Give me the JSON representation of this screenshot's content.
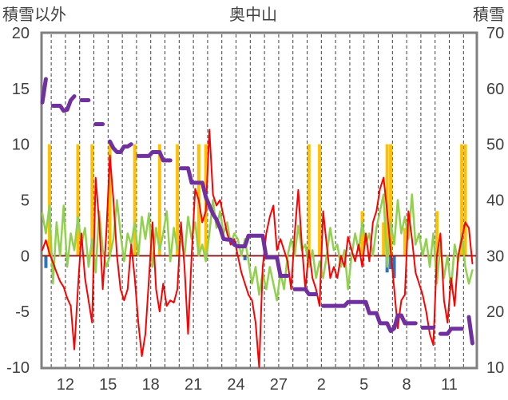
{
  "chart_data": {
    "type": "line",
    "title": "奥中山",
    "ylabel_left": "積雪以外",
    "ylabel_right": "積雪",
    "x_tick_labels": [
      "12",
      "15",
      "18",
      "21",
      "24",
      "27",
      "2",
      "5",
      "8",
      "11"
    ],
    "y_left": {
      "ticks": [
        "-10",
        "-5",
        "0",
        "5",
        "10",
        "15",
        "20"
      ],
      "lim": [
        -10,
        20
      ]
    },
    "y_right": {
      "ticks": [
        "10",
        "20",
        "30",
        "40",
        "50",
        "60",
        "70"
      ],
      "lim": [
        10,
        70
      ]
    },
    "grid": true,
    "series": [
      {
        "type": "bar",
        "axis": "left",
        "color": "#ffc000",
        "values": [
          0,
          0,
          10,
          0,
          0,
          0,
          0,
          0,
          0,
          0,
          10,
          0,
          0,
          0,
          10,
          0,
          0,
          0,
          0,
          10,
          0,
          0,
          0,
          0,
          0,
          0,
          10,
          0,
          0,
          0,
          0,
          0,
          0,
          10,
          0,
          0,
          0,
          0,
          10,
          0,
          0,
          0,
          0,
          0,
          10,
          0,
          10,
          0,
          0,
          0,
          0,
          0,
          0,
          0,
          0,
          0,
          0,
          0,
          0,
          0,
          0,
          0,
          0,
          0,
          0,
          0,
          0,
          0,
          0,
          0,
          0,
          0,
          0,
          0,
          0,
          10,
          0,
          0,
          10,
          0,
          0,
          0,
          0,
          0,
          0,
          0,
          0,
          0,
          0,
          0,
          4,
          0,
          0,
          0,
          0,
          0,
          3,
          10,
          10,
          0,
          0,
          0,
          2.5,
          0,
          0,
          0,
          0,
          0,
          0,
          0,
          0,
          4,
          0,
          0,
          0,
          0,
          0,
          0,
          10,
          10,
          0,
          0,
          0
        ]
      },
      {
        "type": "bar",
        "axis": "left",
        "color": "#2e75b6",
        "values": [
          0,
          -1.1,
          0,
          0,
          0,
          0,
          0,
          0,
          0,
          0,
          0,
          0,
          0,
          0,
          0,
          0,
          0,
          0,
          0,
          0,
          0,
          0,
          0,
          0,
          0,
          0,
          0,
          0,
          0,
          0,
          0,
          0,
          0,
          0,
          0,
          0,
          0,
          0,
          0,
          0,
          0,
          0,
          0,
          0,
          0,
          0,
          0,
          0,
          0,
          0,
          0,
          0,
          0,
          0,
          0,
          0,
          0,
          -0.4,
          0,
          0,
          0,
          0,
          0,
          0,
          0,
          0,
          0,
          0,
          0,
          0,
          0,
          0,
          0,
          0,
          0,
          0,
          0,
          0,
          0,
          0,
          0,
          0,
          0,
          0,
          0,
          0,
          0,
          0,
          0,
          0,
          0,
          0,
          0,
          0,
          0,
          0,
          0,
          -1.5,
          -1.2,
          -2,
          0,
          0,
          0,
          0,
          0,
          0,
          0,
          0,
          0,
          0,
          0,
          0,
          0,
          0,
          0,
          0,
          0,
          0,
          0,
          0,
          0,
          0,
          0
        ]
      },
      {
        "type": "line",
        "axis": "left",
        "color": "#92d050",
        "values": [
          3.8,
          2,
          4.5,
          -2.5,
          3,
          0,
          4.5,
          -1,
          2,
          0.5,
          3.5,
          1,
          2.5,
          -1,
          1.5,
          -1.5,
          4,
          0.5,
          -1,
          0,
          1.5,
          5,
          2,
          -0.5,
          2,
          1,
          3,
          0,
          3.5,
          1.5,
          3.8,
          -1,
          2.5,
          0.5,
          2,
          4,
          -0.5,
          2.5,
          0.5,
          1.5,
          0,
          3.5,
          1.5,
          3,
          0,
          1,
          -0.5,
          2,
          5,
          2.5,
          4,
          2,
          3,
          1,
          2,
          1.5,
          0,
          1.5,
          -0.5,
          -2.5,
          -1,
          -3.5,
          -1.5,
          -3,
          -1,
          -2.5,
          -4,
          -1.5,
          -3,
          0,
          1.5,
          0,
          2.7,
          0.5,
          1,
          -1,
          0.5,
          -2,
          -0.5,
          -2,
          0,
          2.5,
          0.5,
          1,
          -1,
          0.5,
          -3,
          0,
          2,
          0.5,
          3,
          1,
          2,
          0,
          2.5,
          4,
          5.5,
          -1,
          3,
          1,
          5,
          2,
          3.5,
          1.5,
          5.5,
          1,
          2,
          0,
          1.5,
          -1,
          2,
          -2.5,
          1,
          -2,
          0,
          -3,
          1,
          -0.5,
          2,
          -1,
          -2.5,
          -1.3,
          null
        ]
      },
      {
        "type": "line",
        "axis": "left",
        "color": "#ff0000",
        "values": [
          0.5,
          1.4,
          0.2,
          -0.6,
          -1.5,
          -2.3,
          -2.8,
          -3.8,
          -4.5,
          -8.4,
          -3,
          2,
          -2,
          -4,
          -6,
          7,
          3,
          -3,
          2,
          9,
          5,
          0,
          -3,
          -4,
          -3,
          1,
          -2,
          -6,
          -9,
          -7,
          -2,
          3,
          -3,
          -5,
          -2.5,
          -4.5,
          -4,
          -4.2,
          -3,
          3,
          -1,
          -7,
          0,
          6,
          5,
          3,
          4,
          11.3,
          5.5,
          4.5,
          5,
          3.5,
          2,
          1,
          1.5,
          0,
          -1.5,
          -2.5,
          -3.5,
          -4,
          -6,
          -10,
          -1,
          2,
          3.5,
          4.5,
          0.5,
          1.5,
          0.5,
          -0.5,
          -3,
          2,
          5.9,
          1,
          -3,
          0.5,
          -2,
          -3,
          -4.5,
          4,
          1,
          -2,
          -1,
          -2,
          0,
          -1,
          1.7,
          0.5,
          -0.5,
          1,
          -1,
          2,
          -0.5,
          3,
          4,
          6,
          7,
          4,
          0.5,
          -3,
          -6.5,
          -4,
          -3.5,
          4,
          1.5,
          -1.5,
          -2.5,
          -3.5,
          -5,
          -7,
          -8,
          0,
          2,
          -4,
          -6,
          -2,
          -4.5,
          0,
          1.5,
          3,
          2.5,
          -0.7,
          null
        ]
      },
      {
        "type": "line",
        "axis": "right",
        "color": "#7030a0",
        "values": [
          57.5,
          61.7,
          null,
          56.9,
          56.9,
          56.9,
          56.0,
          56.2,
          57.9,
          58.6,
          null,
          57.9,
          57.9,
          57.9,
          null,
          53.6,
          53.6,
          53.6,
          null,
          50.5,
          49.3,
          48.6,
          48.6,
          49.6,
          49.6,
          50,
          null,
          47.9,
          47.9,
          47.9,
          47.9,
          48.6,
          48.6,
          48.6,
          47.1,
          47.1,
          47.1,
          null,
          null,
          45.7,
          45.7,
          45.7,
          43.1,
          43.1,
          43.1,
          43.1,
          40.5,
          39,
          37.5,
          36.5,
          35,
          33,
          32.9,
          32.9,
          32,
          31.7,
          31.7,
          31.7,
          33.6,
          33.6,
          33.6,
          33.6,
          33.6,
          29.7,
          29.7,
          29.7,
          29.7,
          26.4,
          26.4,
          26.4,
          null,
          24,
          24,
          24,
          24,
          23.1,
          23.1,
          23.1,
          null,
          21,
          21,
          21,
          21,
          21,
          21,
          21,
          21.7,
          21.7,
          21.7,
          21.7,
          21.7,
          21.7,
          19.7,
          19.7,
          19.7,
          17.9,
          17.9,
          17.9,
          16.5,
          17,
          19.3,
          19.3,
          17.9,
          17.9,
          17.9,
          17.9,
          null,
          17.1,
          17.1,
          17.1,
          17.1,
          null,
          16,
          16,
          16,
          16.9,
          16.9,
          16.9,
          16.9,
          null,
          19,
          14.3,
          null
        ]
      }
    ]
  }
}
